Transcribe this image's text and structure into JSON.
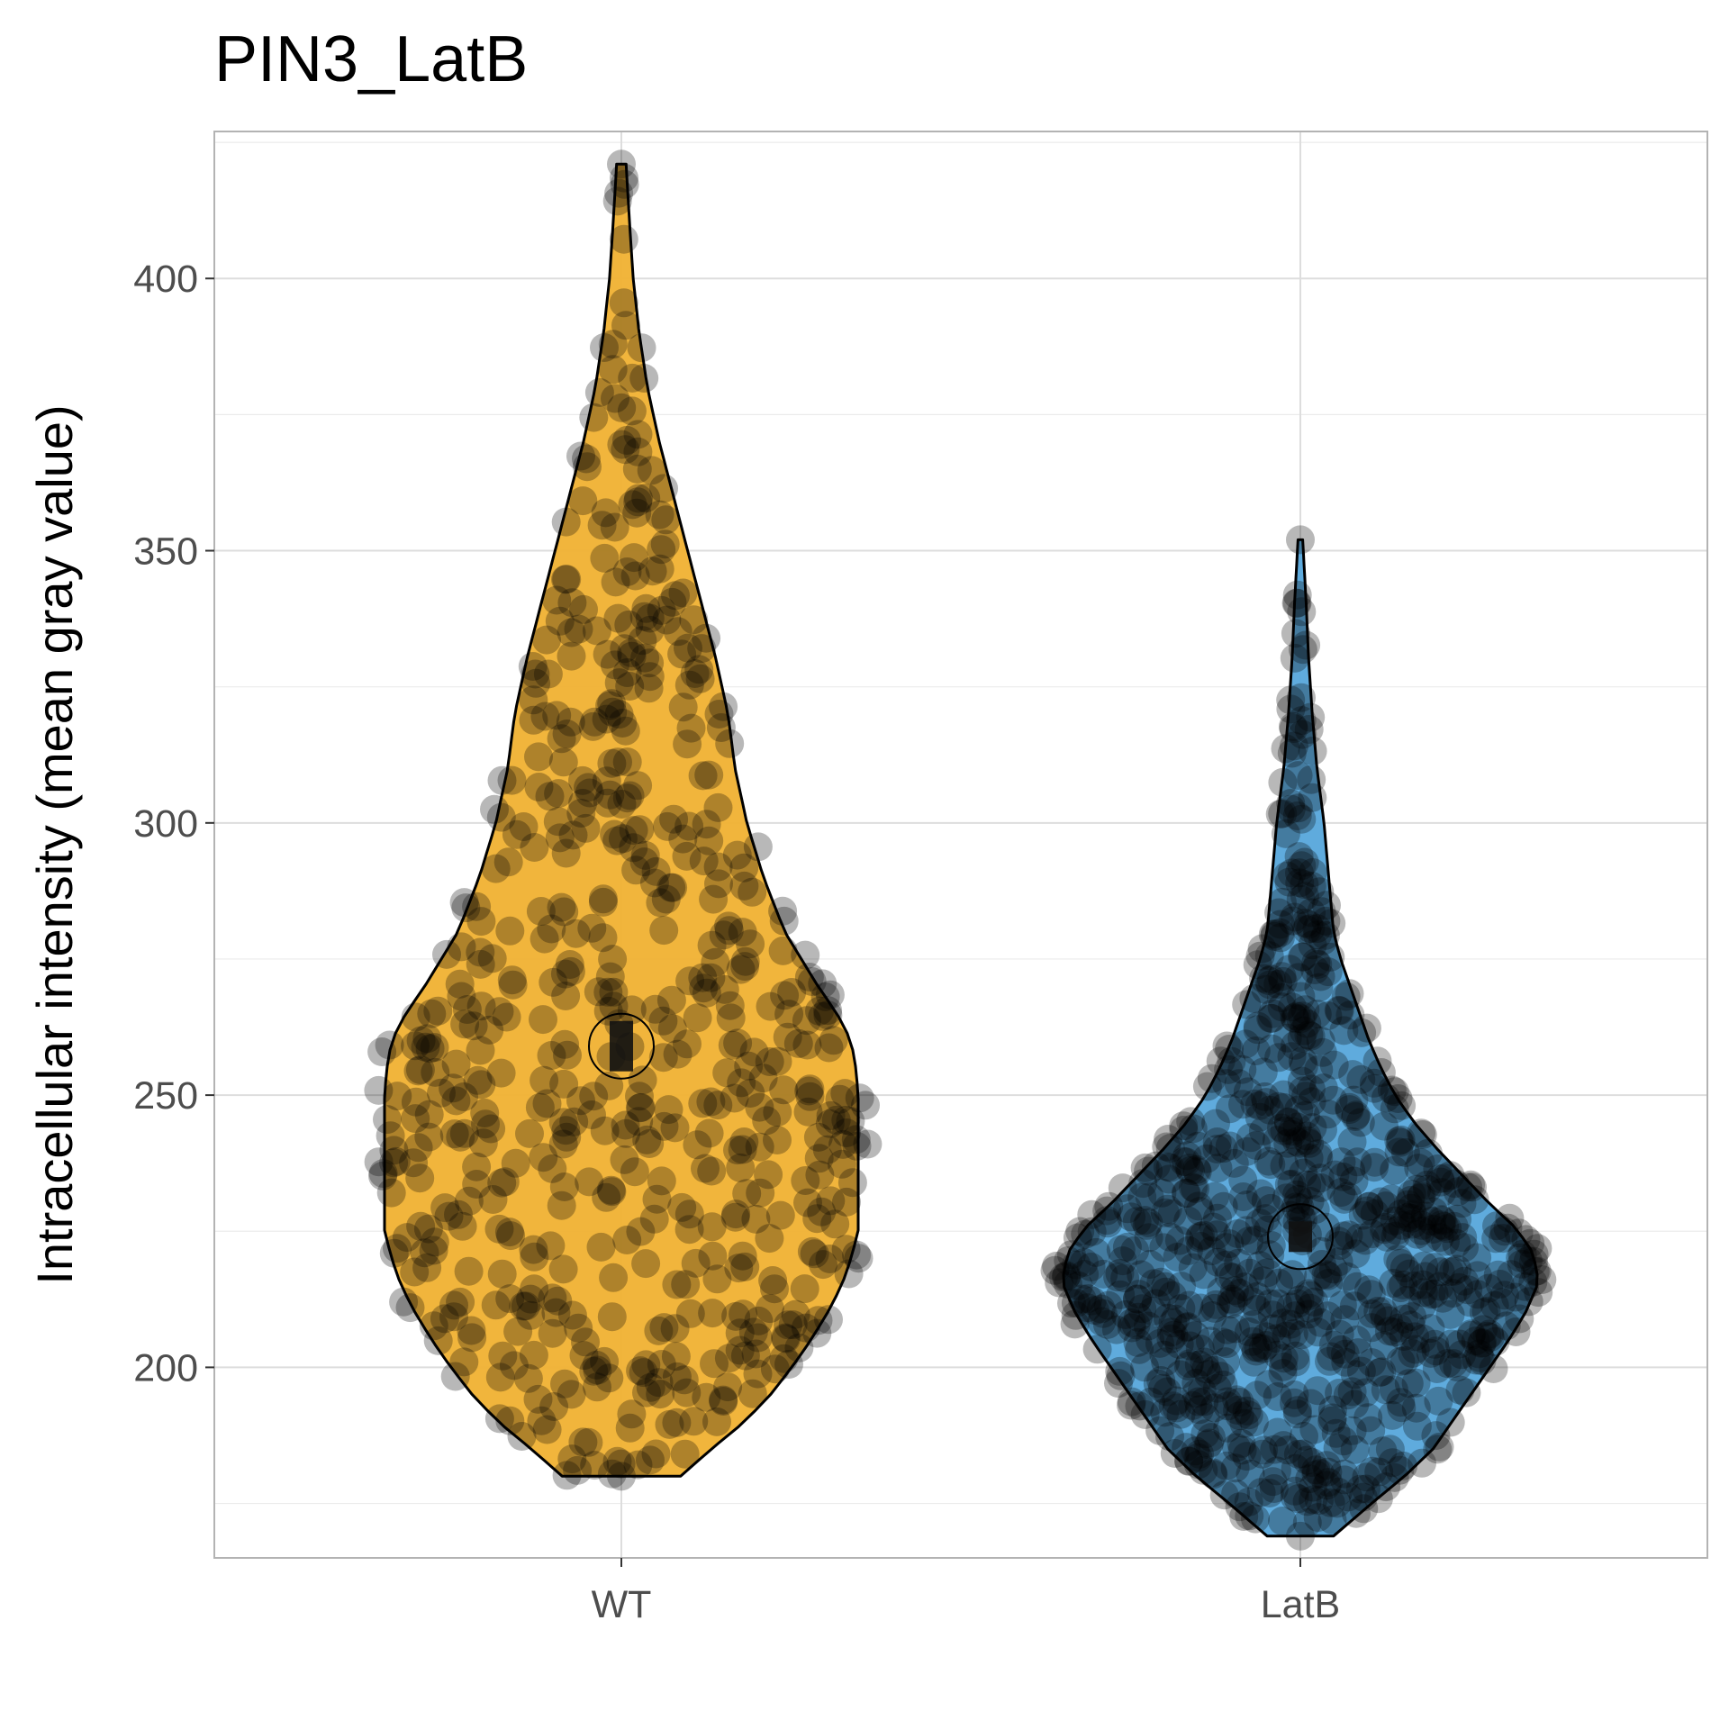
{
  "chart_data": {
    "type": "violin",
    "title": "PIN3_LatB",
    "xlabel": "",
    "ylabel": "Intracellular intensity (mean gray value)",
    "categories": [
      "WT",
      "LatB"
    ],
    "ylim": [
      165,
      427
    ],
    "yticks": [
      200,
      250,
      300,
      350,
      400
    ],
    "grid": true,
    "legend": "none",
    "colors": {
      "WT": "#F0B132",
      "LatB": "#56A6DB",
      "points": "#000000",
      "outline": "#000000",
      "grid": "#dddddd",
      "panel_border": "#b3b3b3"
    },
    "series": [
      {
        "name": "WT",
        "range": [
          180,
          421
        ],
        "mean": 259,
        "median": 259,
        "density_profile": [
          [
            180,
            0.25
          ],
          [
            185,
            0.38
          ],
          [
            190,
            0.52
          ],
          [
            195,
            0.63
          ],
          [
            200,
            0.72
          ],
          [
            205,
            0.8
          ],
          [
            210,
            0.87
          ],
          [
            215,
            0.93
          ],
          [
            220,
            0.97
          ],
          [
            225,
            1.0
          ],
          [
            230,
            1.0
          ],
          [
            235,
            1.0
          ],
          [
            240,
            1.0
          ],
          [
            245,
            1.0
          ],
          [
            250,
            1.0
          ],
          [
            255,
            0.99
          ],
          [
            260,
            0.97
          ],
          [
            265,
            0.91
          ],
          [
            270,
            0.83
          ],
          [
            275,
            0.76
          ],
          [
            280,
            0.69
          ],
          [
            290,
            0.6
          ],
          [
            300,
            0.53
          ],
          [
            310,
            0.48
          ],
          [
            320,
            0.45
          ],
          [
            330,
            0.4
          ],
          [
            340,
            0.34
          ],
          [
            350,
            0.28
          ],
          [
            360,
            0.22
          ],
          [
            370,
            0.16
          ],
          [
            380,
            0.11
          ],
          [
            390,
            0.075
          ],
          [
            400,
            0.05
          ],
          [
            410,
            0.035
          ],
          [
            421,
            0.02
          ]
        ]
      },
      {
        "name": "LatB",
        "range": [
          169,
          352
        ],
        "mean": 224,
        "median": 224,
        "density_profile": [
          [
            169,
            0.14
          ],
          [
            175,
            0.3
          ],
          [
            180,
            0.44
          ],
          [
            185,
            0.56
          ],
          [
            190,
            0.64
          ],
          [
            195,
            0.72
          ],
          [
            200,
            0.8
          ],
          [
            205,
            0.88
          ],
          [
            210,
            0.95
          ],
          [
            215,
            1.0
          ],
          [
            218,
            1.0
          ],
          [
            222,
            0.97
          ],
          [
            226,
            0.9
          ],
          [
            230,
            0.8
          ],
          [
            235,
            0.69
          ],
          [
            240,
            0.58
          ],
          [
            245,
            0.48
          ],
          [
            250,
            0.4
          ],
          [
            255,
            0.34
          ],
          [
            260,
            0.29
          ],
          [
            265,
            0.25
          ],
          [
            270,
            0.21
          ],
          [
            275,
            0.17
          ],
          [
            280,
            0.14
          ],
          [
            290,
            0.12
          ],
          [
            300,
            0.1
          ],
          [
            310,
            0.07
          ],
          [
            320,
            0.05
          ],
          [
            330,
            0.035
          ],
          [
            340,
            0.025
          ],
          [
            352,
            0.01
          ]
        ]
      }
    ]
  }
}
